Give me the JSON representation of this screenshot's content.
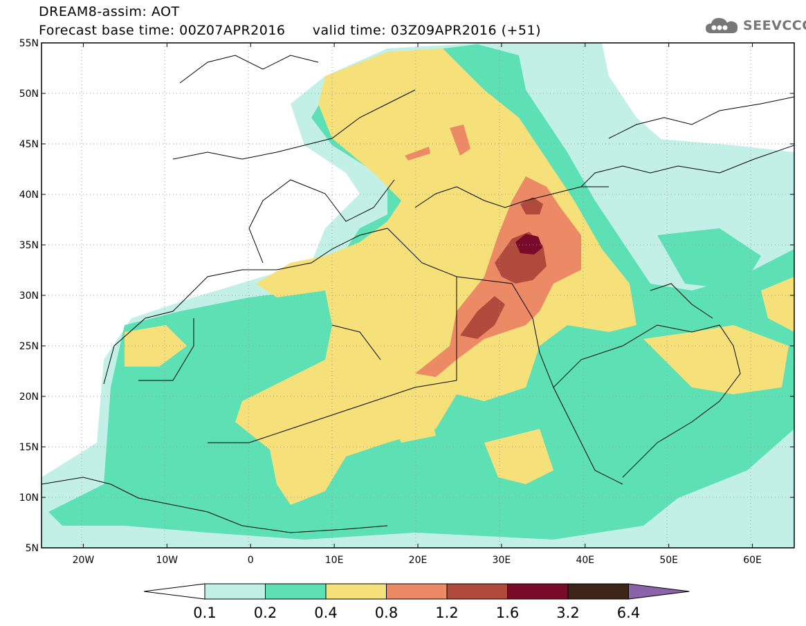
{
  "header": {
    "title": "DREAM8-assim: AOT",
    "base_time_label": "Forecast base time: 00Z07APR2016",
    "valid_time_label": "valid time: 03Z09APR2016 (+51)"
  },
  "logo": {
    "text": "SEEVCCC",
    "icon": "cloud-icon"
  },
  "map": {
    "lon_range": [
      -25,
      65
    ],
    "lat_range": [
      5,
      55
    ],
    "lon_ticks": [
      {
        "value": -20,
        "label": "20W"
      },
      {
        "value": -10,
        "label": "10W"
      },
      {
        "value": 0,
        "label": "0"
      },
      {
        "value": 10,
        "label": "10E"
      },
      {
        "value": 20,
        "label": "20E"
      },
      {
        "value": 30,
        "label": "30E"
      },
      {
        "value": 40,
        "label": "40E"
      },
      {
        "value": 50,
        "label": "50E"
      },
      {
        "value": 60,
        "label": "60E"
      }
    ],
    "lat_ticks": [
      {
        "value": 55,
        "label": "55N"
      },
      {
        "value": 50,
        "label": "50N"
      },
      {
        "value": 45,
        "label": "45N"
      },
      {
        "value": 40,
        "label": "40N"
      },
      {
        "value": 35,
        "label": "35N"
      },
      {
        "value": 30,
        "label": "30N"
      },
      {
        "value": 25,
        "label": "25N"
      },
      {
        "value": 20,
        "label": "20N"
      },
      {
        "value": 15,
        "label": "15N"
      },
      {
        "value": 10,
        "label": "10N"
      },
      {
        "value": 5,
        "label": "5N"
      }
    ],
    "grid": true
  },
  "colorbar": {
    "levels": [
      "0.1",
      "0.2",
      "0.4",
      "0.8",
      "1.2",
      "1.6",
      "3.2",
      "6.4"
    ],
    "colors": [
      "#ffffff",
      "#c2f0e6",
      "#5ee0b5",
      "#f5e07a",
      "#ec8a66",
      "#b04a3c",
      "#7a0a2a",
      "#3c2417",
      "#8a63a8"
    ]
  },
  "chart_data": {
    "type": "heatmap",
    "variable": "AOT",
    "xlim": [
      -25,
      65
    ],
    "ylim": [
      5,
      55
    ],
    "levels": [
      0.1,
      0.2,
      0.4,
      0.8,
      1.2,
      1.6,
      3.2,
      6.4
    ],
    "regions": [
      {
        "level": 0.1,
        "lon": [
          -25,
          65
        ],
        "lat": [
          5,
          55
        ]
      },
      {
        "level": 0.2,
        "lon": [
          -23,
          65
        ],
        "lat": [
          5,
          54
        ]
      },
      {
        "level": 0.4,
        "lon": [
          -17,
          63
        ],
        "lat": [
          7,
          54
        ]
      },
      {
        "level": 0.8,
        "lon": [
          -12,
          55
        ],
        "lat": [
          9,
          53
        ]
      },
      {
        "level": 1.2,
        "lon": [
          22,
          37
        ],
        "lat": [
          22,
          41
        ]
      },
      {
        "level": 1.6,
        "lon": [
          26,
          35
        ],
        "lat": [
          26,
          40
        ]
      },
      {
        "level": 3.2,
        "lon": [
          32,
          35
        ],
        "lat": [
          33,
          36
        ]
      }
    ]
  }
}
